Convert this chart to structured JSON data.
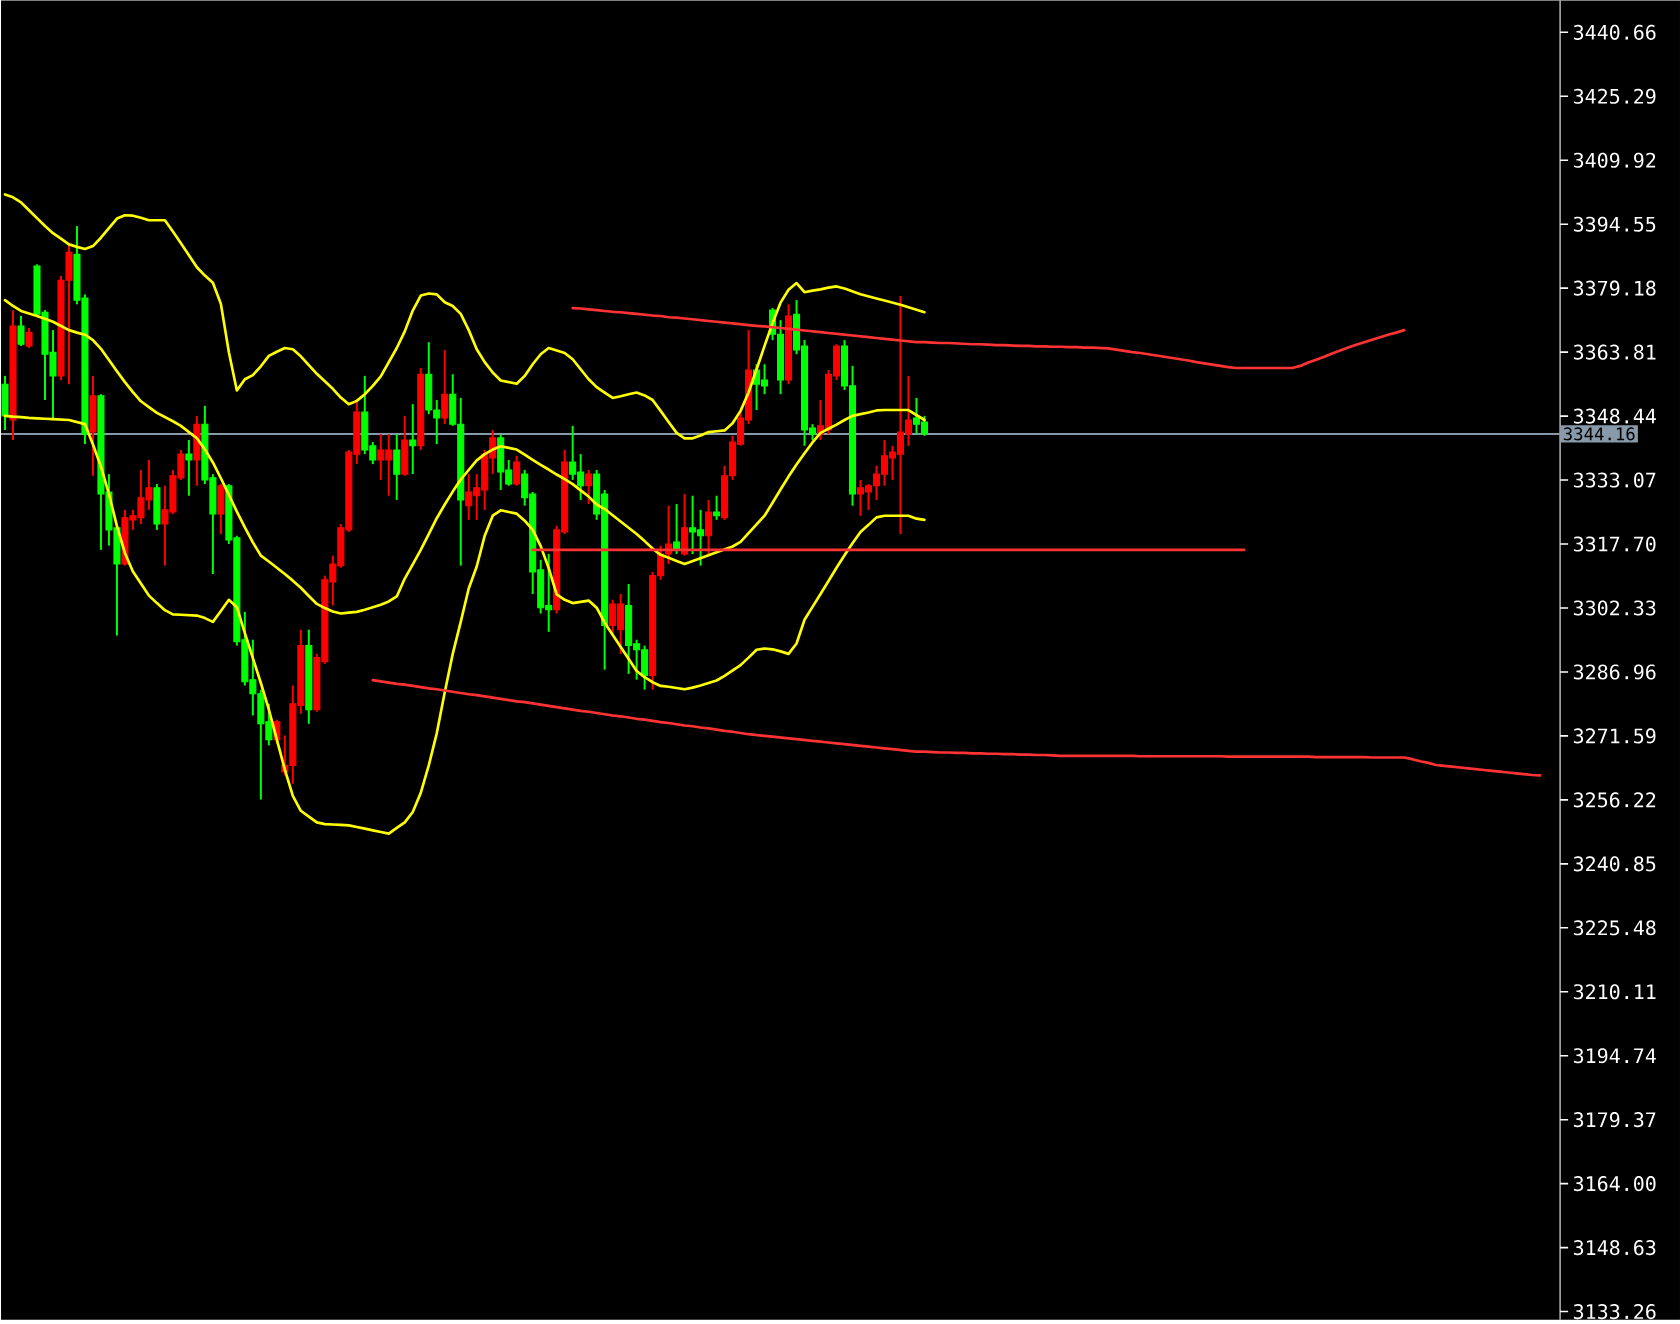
{
  "chart_data": {
    "type": "candlestick",
    "categories": [
      null,
      null,
      null,
      null,
      null,
      null,
      null,
      null,
      null,
      null,
      null,
      null,
      null,
      null,
      null,
      null,
      null,
      null,
      null,
      null,
      null,
      null,
      null,
      null,
      null,
      null,
      null,
      null,
      null,
      null,
      null,
      null,
      null,
      null,
      null,
      null,
      null,
      null,
      null,
      null,
      null,
      null,
      null,
      null,
      null,
      null,
      null,
      null,
      null,
      null,
      null,
      null,
      null,
      null,
      null,
      null,
      null,
      null,
      null,
      null,
      null,
      null,
      null,
      null,
      null,
      null,
      null,
      null,
      null,
      null,
      null,
      null,
      null,
      null,
      null,
      null,
      null,
      null,
      null,
      null,
      null,
      null,
      null,
      null,
      null,
      null,
      null,
      null,
      null,
      null,
      null,
      null,
      null,
      null,
      null,
      null,
      null,
      null,
      null,
      null,
      null,
      null,
      null,
      null,
      null,
      null,
      null,
      null,
      null,
      null,
      null,
      null,
      null,
      null,
      null,
      null,
      null,
      null,
      null,
      null,
      null,
      null,
      null,
      null,
      null,
      null,
      null,
      null,
      null,
      null,
      null,
      null,
      null,
      null,
      null,
      null,
      null,
      null,
      null,
      null,
      null,
      null,
      null,
      null,
      null,
      null,
      null,
      null,
      null,
      null,
      null,
      null,
      null,
      null,
      null,
      null,
      null,
      null,
      null,
      null,
      null,
      null,
      null,
      null,
      null,
      null,
      null,
      null,
      null,
      null,
      null,
      null,
      null,
      null,
      null,
      null,
      null,
      null,
      null,
      null,
      null,
      null,
      null,
      null,
      null,
      null,
      null,
      null,
      null,
      null,
      null,
      null,
      null,
      null,
      null
    ],
    "ohlc": [
      [
        3356.1,
        3358.1,
        3345.1,
        3348.5
      ],
      [
        3347.5,
        3373.9,
        3342.7,
        3370.1
      ],
      [
        3370.1,
        3372.5,
        3365.3,
        3365.7
      ],
      [
        3365.3,
        3369.6,
        3364.8,
        3368.6
      ],
      [
        3384.5,
        3384.9,
        3372.5,
        3372.9
      ],
      [
        3373.4,
        3373.9,
        3352.3,
        3363.3
      ],
      [
        3363.8,
        3369.1,
        3347.5,
        3358.1
      ],
      [
        3358.1,
        3382.1,
        3357.1,
        3381.1
      ],
      [
        3381.1,
        3389.7,
        3356.1,
        3387.8
      ],
      [
        3387.3,
        3394.1,
        3375.3,
        3376.3
      ],
      [
        3376.8,
        3377.7,
        3341.7,
        3344.1
      ],
      [
        3344.6,
        3358.1,
        3334.1,
        3353.3
      ],
      [
        3353.3,
        3353.7,
        3316.3,
        3329.7
      ],
      [
        3330.2,
        3334.5,
        3317.3,
        3321.1
      ],
      [
        3321.6,
        3322.1,
        3295.7,
        3312.9
      ],
      [
        3312.9,
        3325.9,
        3312.5,
        3324.0
      ],
      [
        3323.5,
        3325.9,
        3321.1,
        3324.5
      ],
      [
        3324.0,
        3335.5,
        3322.5,
        3328.8
      ],
      [
        3328.3,
        3337.9,
        3325.9,
        3331.2
      ],
      [
        3331.2,
        3332.1,
        3321.1,
        3322.5
      ],
      [
        3322.5,
        3331.7,
        3312.5,
        3325.9
      ],
      [
        3325.4,
        3335.5,
        3324.9,
        3334.1
      ],
      [
        3333.6,
        3340.3,
        3333.1,
        3339.3
      ],
      [
        3339.3,
        3342.7,
        3329.3,
        3337.9
      ],
      [
        3337.9,
        3348.5,
        3331.7,
        3346.5
      ],
      [
        3346.5,
        3350.9,
        3332.1,
        3333.1
      ],
      [
        3333.6,
        3334.5,
        3310.5,
        3324.9
      ],
      [
        3324.9,
        3332.1,
        3320.1,
        3331.7
      ],
      [
        3331.7,
        3332.1,
        3317.7,
        3318.7
      ],
      [
        3319.2,
        3319.7,
        3293.3,
        3294.2
      ],
      [
        3294.7,
        3301.4,
        3283.7,
        3284.6
      ],
      [
        3285.1,
        3294.7,
        3276.5,
        3281.7
      ],
      [
        3281.7,
        3282.7,
        3256.3,
        3274.5
      ],
      [
        3275.0,
        3279.3,
        3269.3,
        3270.7
      ],
      [
        3270.7,
        3275.5,
        3269.7,
        3275.0
      ],
      [
        3263.0,
        3271.7,
        3262.1,
        3264.5
      ],
      [
        3264.5,
        3283.7,
        3260.1,
        3279.3
      ],
      [
        3278.9,
        3297.1,
        3276.9,
        3293.3
      ],
      [
        3293.3,
        3297.1,
        3274.5,
        3277.9
      ],
      [
        3277.9,
        3291.3,
        3277.4,
        3290.4
      ],
      [
        3289.4,
        3310.1,
        3288.9,
        3309.1
      ],
      [
        3308.6,
        3314.9,
        3302.9,
        3312.9
      ],
      [
        3312.5,
        3322.5,
        3312.0,
        3321.6
      ],
      [
        3321.1,
        3340.3,
        3320.6,
        3339.8
      ],
      [
        3339.3,
        3352.3,
        3336.9,
        3349.4
      ],
      [
        3349.4,
        3358.1,
        3339.3,
        3340.3
      ],
      [
        3341.3,
        3342.2,
        3336.9,
        3337.9
      ],
      [
        3337.9,
        3344.1,
        3333.1,
        3340.3
      ],
      [
        3337.9,
        3344.1,
        3329.3,
        3340.3
      ],
      [
        3340.3,
        3344.1,
        3328.3,
        3334.5
      ],
      [
        3334.5,
        3348.5,
        3334.1,
        3342.7
      ],
      [
        3342.7,
        3351.3,
        3334.5,
        3341.3
      ],
      [
        3341.3,
        3360.0,
        3340.3,
        3358.5
      ],
      [
        3358.5,
        3366.2,
        3348.9,
        3349.9
      ],
      [
        3349.9,
        3352.3,
        3341.7,
        3348.0
      ],
      [
        3348.0,
        3364.3,
        3346.5,
        3353.7
      ],
      [
        3353.7,
        3358.5,
        3346.1,
        3346.5
      ],
      [
        3346.5,
        3352.8,
        3312.5,
        3328.3
      ],
      [
        3326.9,
        3334.5,
        3323.5,
        3330.2
      ],
      [
        3329.3,
        3334.5,
        3323.5,
        3331.2
      ],
      [
        3330.7,
        3340.3,
        3325.9,
        3339.3
      ],
      [
        3338.4,
        3345.1,
        3334.5,
        3343.2
      ],
      [
        3343.2,
        3344.1,
        3330.7,
        3335.0
      ],
      [
        3335.5,
        3337.9,
        3331.7,
        3332.1
      ],
      [
        3332.1,
        3338.9,
        3331.7,
        3337.4
      ],
      [
        3334.5,
        3335.5,
        3326.9,
        3328.8
      ],
      [
        3329.7,
        3330.2,
        3305.7,
        3311.0
      ],
      [
        3311.5,
        3313.9,
        3301.0,
        3302.4
      ],
      [
        3302.9,
        3315.3,
        3296.6,
        3301.9
      ],
      [
        3301.9,
        3322.1,
        3301.0,
        3321.1
      ],
      [
        3320.6,
        3340.3,
        3320.1,
        3337.4
      ],
      [
        3337.4,
        3346.1,
        3333.1,
        3334.5
      ],
      [
        3335.0,
        3339.3,
        3328.3,
        3331.7
      ],
      [
        3331.7,
        3335.5,
        3327.3,
        3334.5
      ],
      [
        3334.5,
        3335.5,
        3323.5,
        3324.9
      ],
      [
        3329.7,
        3330.7,
        3287.5,
        3298.1
      ],
      [
        3298.1,
        3304.3,
        3296.1,
        3303.3
      ],
      [
        3297.1,
        3305.7,
        3291.3,
        3303.3
      ],
      [
        3302.9,
        3308.1,
        3286.5,
        3293.3
      ],
      [
        3293.7,
        3294.7,
        3285.1,
        3292.3
      ],
      [
        3292.3,
        3293.3,
        3282.7,
        3286.1
      ],
      [
        3286.1,
        3311.0,
        3282.7,
        3310.1
      ],
      [
        3310.1,
        3317.3,
        3309.1,
        3315.3
      ],
      [
        3315.3,
        3326.9,
        3312.9,
        3317.7
      ],
      [
        3318.2,
        3327.3,
        3315.3,
        3316.3
      ],
      [
        3315.3,
        3329.7,
        3314.9,
        3321.6
      ],
      [
        3321.6,
        3329.3,
        3315.3,
        3320.6
      ],
      [
        3321.1,
        3325.9,
        3312.5,
        3319.7
      ],
      [
        3319.7,
        3328.3,
        3314.9,
        3325.4
      ],
      [
        3325.4,
        3329.3,
        3323.5,
        3324.5
      ],
      [
        3324.0,
        3336.5,
        3323.5,
        3334.1
      ],
      [
        3334.1,
        3343.7,
        3333.1,
        3342.2
      ],
      [
        3341.7,
        3349.9,
        3341.3,
        3348.0
      ],
      [
        3347.5,
        3369.1,
        3346.5,
        3359.5
      ],
      [
        3359.5,
        3360.9,
        3349.9,
        3356.1
      ],
      [
        3357.1,
        3360.9,
        3353.7,
        3355.7
      ],
      [
        3373.9,
        3374.4,
        3366.7,
        3368.1
      ],
      [
        3368.1,
        3371.5,
        3353.7,
        3357.1
      ],
      [
        3357.1,
        3375.3,
        3356.1,
        3372.5
      ],
      [
        3372.9,
        3376.3,
        3363.3,
        3364.3
      ],
      [
        3365.3,
        3366.7,
        3341.3,
        3345.1
      ],
      [
        3345.6,
        3346.5,
        3342.7,
        3344.1
      ],
      [
        3344.1,
        3352.3,
        3342.7,
        3346.1
      ],
      [
        3345.1,
        3359.5,
        3344.1,
        3358.5
      ],
      [
        3358.1,
        3365.7,
        3357.1,
        3365.3
      ],
      [
        3365.3,
        3366.7,
        3354.7,
        3355.7
      ],
      [
        3355.7,
        3360.5,
        3326.9,
        3329.7
      ],
      [
        3329.7,
        3333.1,
        3324.5,
        3331.2
      ],
      [
        3330.2,
        3332.1,
        3325.9,
        3331.7
      ],
      [
        3331.7,
        3336.5,
        3328.3,
        3334.5
      ],
      [
        3334.5,
        3342.7,
        3331.7,
        3338.9
      ],
      [
        3338.4,
        3341.3,
        3333.1,
        3339.8
      ],
      [
        3339.3,
        3377.3,
        3320.1,
        3344.6
      ],
      [
        3344.1,
        3358.1,
        3341.3,
        3347.5
      ],
      [
        3348.0,
        3352.8,
        3344.1,
        3346.5
      ],
      [
        3347.0,
        3348.5,
        3343.7,
        3344.16
      ],
      null,
      null,
      null,
      null,
      null,
      null,
      null,
      null,
      null,
      null,
      null,
      null,
      null,
      null,
      null,
      null,
      null,
      null,
      null,
      null,
      null,
      null,
      null,
      null,
      null,
      null,
      null,
      null,
      null,
      null,
      null,
      null,
      null,
      null,
      null,
      null,
      null,
      null,
      null,
      null,
      null,
      null,
      null,
      null,
      null,
      null,
      null,
      null,
      null,
      null,
      null,
      null,
      null,
      null,
      null,
      null,
      null,
      null,
      null,
      null,
      null,
      null,
      null,
      null,
      null,
      null,
      null,
      null,
      null,
      null,
      null,
      null,
      null,
      null,
      null,
      null,
      null,
      null,
      null
    ],
    "colors": [
      "#00ff00",
      "#ff0000",
      "#00ff00",
      "#ff0000",
      "#00ff00",
      "#00ff00",
      "#00ff00",
      "#ff0000",
      "#ff0000",
      "#00ff00",
      "#00ff00",
      "#ff0000",
      "#00ff00",
      "#00ff00",
      "#00ff00",
      "#ff0000",
      "#ff0000",
      "#ff0000",
      "#ff0000",
      "#00ff00",
      "#ff0000",
      "#ff0000",
      "#ff0000",
      "#00ff00",
      "#ff0000",
      "#00ff00",
      "#00ff00",
      "#ff0000",
      "#00ff00",
      "#00ff00",
      "#00ff00",
      "#00ff00",
      "#00ff00",
      "#00ff00",
      "#ff0000",
      "#ff0000",
      "#ff0000",
      "#ff0000",
      "#00ff00",
      "#ff0000",
      "#ff0000",
      "#ff0000",
      "#ff0000",
      "#ff0000",
      "#ff0000",
      "#00ff00",
      "#00ff00",
      "#ff0000",
      "#ff0000",
      "#00ff00",
      "#ff0000",
      "#00ff00",
      "#ff0000",
      "#00ff00",
      "#00ff00",
      "#ff0000",
      "#00ff00",
      "#00ff00",
      "#ff0000",
      "#ff0000",
      "#ff0000",
      "#ff0000",
      "#00ff00",
      "#00ff00",
      "#ff0000",
      "#00ff00",
      "#00ff00",
      "#00ff00",
      "#00ff00",
      "#ff0000",
      "#ff0000",
      "#00ff00",
      "#00ff00",
      "#ff0000",
      "#00ff00",
      "#00ff00",
      "#ff0000",
      "#ff0000",
      "#00ff00",
      "#00ff00",
      "#00ff00",
      "#ff0000",
      "#ff0000",
      "#ff0000",
      "#00ff00",
      "#ff0000",
      "#00ff00",
      "#00ff00",
      "#ff0000",
      "#00ff00",
      "#ff0000",
      "#ff0000",
      "#ff0000",
      "#ff0000",
      "#00ff00",
      "#00ff00",
      "#00ff00",
      "#00ff00",
      "#ff0000",
      "#00ff00",
      "#00ff00",
      "#00ff00",
      "#ff0000",
      "#ff0000",
      "#ff0000",
      "#00ff00",
      "#00ff00",
      "#ff0000",
      "#ff0000",
      "#ff0000",
      "#ff0000",
      "#ff0000",
      "#ff0000",
      "#ff0000",
      "#00ff00",
      "#00ff00",
      null,
      null,
      null,
      null,
      null,
      null,
      null,
      null,
      null,
      null,
      null,
      null,
      null,
      null,
      null,
      null,
      null,
      null,
      null,
      null,
      null,
      null,
      null,
      null,
      null,
      null,
      null,
      null,
      null,
      null,
      null,
      null,
      null,
      null,
      null,
      null,
      null,
      null,
      null,
      null,
      null,
      null,
      null,
      null,
      null,
      null,
      null,
      null,
      null,
      null,
      null,
      null,
      null,
      null,
      null,
      null,
      null,
      null,
      null,
      null,
      null,
      null,
      null,
      null,
      null,
      null,
      null,
      null,
      null,
      null,
      null,
      null,
      null,
      null,
      null,
      null,
      null,
      null,
      null
    ],
    "series": [
      {
        "type": "line",
        "color": "#ffff00",
        "values": [
          3401.7,
          3401.0,
          3399.8,
          3397.9,
          3396.0,
          3394.1,
          3392.4,
          3391.1,
          3389.7,
          3389.1,
          3388.6,
          3389.3,
          3391.3,
          3393.6,
          3395.9,
          3396.7,
          3396.6,
          3396.1,
          3395.5,
          3395.5,
          3395.5,
          3392.8,
          3390.0,
          3387.1,
          3384.2,
          3382.2,
          3380.5,
          3375.4,
          3363.8,
          3354.6,
          3357.3,
          3358.3,
          3360.4,
          3362.9,
          3363.9,
          3364.8,
          3364.5,
          3362.8,
          3360.7,
          3358.6,
          3356.8,
          3355.0,
          3352.9,
          3351.3,
          3352.1,
          3353.7,
          3355.7,
          3358.0,
          3361.4,
          3364.8,
          3368.8,
          3373.8,
          3377.4,
          3377.9,
          3377.7,
          3375.8,
          3374.9,
          3373.0,
          3369.1,
          3364.5,
          3361.4,
          3358.9,
          3357.0,
          3356.6,
          3356.2,
          3358.1,
          3360.9,
          3363.3,
          3364.8,
          3364.2,
          3363.6,
          3362.1,
          3359.7,
          3357.3,
          3355.4,
          3354.1,
          3352.8,
          3353.2,
          3353.7,
          3354.1,
          3353.4,
          3352.3,
          3349.7,
          3347.0,
          3344.4,
          3343.1,
          3343.1,
          3343.8,
          3344.6,
          3344.8,
          3345.0,
          3346.7,
          3349.7,
          3354.1,
          3359.7,
          3365.3,
          3370.8,
          3375.7,
          3378.8,
          3380.4,
          3378.2,
          3378.6,
          3378.9,
          3379.3,
          3379.6,
          3379.1,
          3378.4,
          3377.7,
          3377.2,
          3376.7,
          3376.2,
          3375.7,
          3375.2,
          3374.6,
          3374.0,
          3373.4,
          null,
          null,
          null,
          null,
          null,
          null,
          null,
          null,
          null,
          null,
          null,
          null,
          null,
          null,
          null,
          null,
          null,
          null,
          null,
          null,
          null,
          null,
          null,
          null,
          null,
          null,
          null,
          null,
          null,
          null,
          null,
          null,
          null,
          null,
          null,
          null,
          null,
          null,
          null,
          null,
          null,
          null,
          null,
          null,
          null,
          null,
          null,
          null,
          null,
          null,
          null,
          null,
          null,
          null,
          null,
          null,
          null,
          null,
          null,
          null,
          null,
          null,
          null,
          null,
          null,
          null,
          null,
          null,
          null,
          null,
          null,
          null,
          null,
          null,
          null,
          null,
          null,
          null,
          null
        ]
      },
      {
        "type": "line",
        "color": "#ffff00",
        "values": [
          3376.3,
          3374.9,
          3373.7,
          3373.1,
          3372.5,
          3371.8,
          3371.1,
          3370.1,
          3369.1,
          3368.5,
          3368.0,
          3366.7,
          3364.6,
          3361.9,
          3359.2,
          3356.6,
          3354.2,
          3352.0,
          3350.6,
          3349.2,
          3348.2,
          3347.2,
          3346.1,
          3344.6,
          3343.1,
          3340.4,
          3337.3,
          3333.5,
          3329.5,
          3325.5,
          3321.7,
          3318.1,
          3314.9,
          3313.5,
          3312.0,
          3310.5,
          3308.9,
          3307.2,
          3305.2,
          3303.3,
          3302.3,
          3301.5,
          3301.0,
          3301.2,
          3301.4,
          3301.9,
          3302.5,
          3303.1,
          3303.9,
          3305.1,
          3309.4,
          3312.8,
          3316.3,
          3320.1,
          3323.9,
          3327.2,
          3330.3,
          3333.2,
          3335.5,
          3337.8,
          3339.3,
          3340.4,
          3341.2,
          3340.8,
          3340.4,
          3339.2,
          3337.9,
          3336.7,
          3335.6,
          3334.4,
          3333.3,
          3332.1,
          3330.6,
          3329.1,
          3327.2,
          3326.1,
          3324.6,
          3323.1,
          3321.6,
          3320.1,
          3318.4,
          3316.6,
          3315.1,
          3314.4,
          3313.6,
          3312.9,
          3313.6,
          3314.3,
          3315.0,
          3315.7,
          3316.4,
          3317.1,
          3318.2,
          3320.3,
          3322.4,
          3324.5,
          3327.6,
          3330.8,
          3333.9,
          3336.8,
          3339.5,
          3342.1,
          3344.4,
          3345.4,
          3346.4,
          3347.5,
          3348.5,
          3348.9,
          3349.3,
          3349.8,
          3349.9,
          3349.9,
          3349.9,
          3349.9,
          3348.7,
          3347.5,
          null,
          null,
          null,
          null,
          null,
          null,
          null,
          null,
          null,
          null,
          null,
          null,
          null,
          null,
          null,
          null,
          null,
          null,
          null,
          null,
          null,
          null,
          null,
          null,
          null,
          null,
          null,
          null,
          null,
          null,
          null,
          null,
          null,
          null,
          null,
          null,
          null,
          null,
          null,
          null,
          null,
          null,
          null,
          null,
          null,
          null,
          null,
          null,
          null,
          null,
          null,
          null,
          null,
          null,
          null,
          null,
          null,
          null,
          null,
          null,
          null,
          null,
          null,
          null,
          null,
          null,
          null,
          null,
          null,
          null,
          null,
          null,
          null,
          null,
          null,
          null,
          null,
          null,
          null
        ]
      },
      {
        "type": "line",
        "color": "#ffff00",
        "values": [
          3348.5,
          3348.3,
          3348.2,
          3348.0,
          3347.9,
          3347.8,
          3347.7,
          3347.6,
          3347.5,
          3347.0,
          3346.5,
          3341.6,
          3336.3,
          3329.7,
          3322.0,
          3315.5,
          3311.1,
          3308.2,
          3305.3,
          3303.5,
          3301.8,
          3300.8,
          3300.7,
          3300.6,
          3300.5,
          3299.9,
          3299.0,
          3301.6,
          3304.3,
          3302.5,
          3296.3,
          3290.3,
          3284.3,
          3277.9,
          3270.7,
          3263.5,
          3257.2,
          3253.6,
          3252.2,
          3250.8,
          3250.4,
          3250.3,
          3250.2,
          3250.1,
          3249.7,
          3249.3,
          3248.9,
          3248.5,
          3248.1,
          3249.5,
          3250.8,
          3253.3,
          3257.9,
          3264.5,
          3272.2,
          3282.1,
          3291.3,
          3299.0,
          3307.0,
          3312.3,
          3319.7,
          3324.5,
          3325.8,
          3325.4,
          3325.0,
          3323.3,
          3321.1,
          3317.2,
          3311.9,
          3305.6,
          3304.3,
          3303.5,
          3303.8,
          3304.1,
          3302.4,
          3298.8,
          3295.9,
          3293.0,
          3290.1,
          3287.2,
          3285.7,
          3284.5,
          3283.6,
          3283.4,
          3283.1,
          3282.8,
          3283.2,
          3283.7,
          3284.3,
          3284.9,
          3286.0,
          3287.3,
          3288.6,
          3290.4,
          3292.3,
          3292.6,
          3292.4,
          3291.9,
          3291.3,
          3293.8,
          3299.5,
          3302.6,
          3305.7,
          3308.8,
          3312.0,
          3315.0,
          3317.9,
          3320.6,
          3322.3,
          3324.1,
          3324.5,
          3324.5,
          3324.5,
          3324.5,
          3323.8,
          3323.5,
          null,
          null,
          null,
          null,
          null,
          null,
          null,
          null,
          null,
          null,
          null,
          null,
          null,
          null,
          null,
          null,
          null,
          null,
          null,
          null,
          null,
          null,
          null,
          null,
          null,
          null,
          null,
          null,
          null,
          null,
          null,
          null,
          null,
          null,
          null,
          null,
          null,
          null,
          null,
          null,
          null,
          null,
          null,
          null,
          null,
          null,
          null,
          null,
          null,
          null,
          null,
          null,
          null,
          null,
          null,
          null,
          null,
          null,
          null,
          null,
          null,
          null,
          null,
          null,
          null,
          null,
          null,
          null,
          null,
          null,
          null,
          null,
          null,
          null,
          null,
          null,
          null,
          null,
          null
        ]
      },
      {
        "type": "line",
        "color": "#ff3333",
        "values": [
          null,
          null,
          null,
          null,
          null,
          null,
          null,
          null,
          null,
          null,
          null,
          null,
          null,
          null,
          null,
          null,
          null,
          null,
          null,
          null,
          null,
          null,
          null,
          null,
          null,
          null,
          null,
          null,
          null,
          null,
          null,
          null,
          null,
          null,
          null,
          null,
          null,
          null,
          null,
          null,
          null,
          null,
          null,
          null,
          null,
          null,
          null,
          null,
          null,
          null,
          null,
          null,
          null,
          null,
          null,
          null,
          null,
          null,
          null,
          null,
          null,
          null,
          null,
          null,
          null,
          null,
          null,
          null,
          null,
          null,
          null,
          3374.4,
          3374.3,
          3374.1,
          3373.9,
          3373.7,
          3373.5,
          3373.4,
          3373.2,
          3373.0,
          3372.8,
          3372.6,
          3372.5,
          3372.2,
          3372.1,
          3371.9,
          3371.7,
          3371.5,
          3371.3,
          3371.1,
          3370.9,
          3370.7,
          3370.5,
          3370.3,
          3370.1,
          3370.0,
          3369.8,
          3369.6,
          3369.4,
          3369.2,
          3369.0,
          3368.8,
          3368.6,
          3368.4,
          3368.2,
          3368.0,
          3367.8,
          3367.6,
          3367.4,
          3367.2,
          3367.0,
          3366.8,
          3366.6,
          3366.4,
          3366.2,
          3366.2,
          3366.1,
          3366.0,
          3366.0,
          3365.9,
          3365.8,
          3365.7,
          3365.7,
          3365.6,
          3365.5,
          3365.5,
          3365.4,
          3365.3,
          3365.3,
          3365.2,
          3365.2,
          3365.1,
          3365.1,
          3365.0,
          3365.0,
          3364.9,
          3364.9,
          3364.8,
          3364.7,
          3364.4,
          3364.1,
          3363.8,
          3363.6,
          3363.3,
          3363.0,
          3362.7,
          3362.4,
          3362.1,
          3361.8,
          3361.4,
          3361.1,
          3360.8,
          3360.5,
          3360.2,
          3360.0,
          3360.0,
          3360.0,
          3360.0,
          3360.0,
          3360.0,
          3360.0,
          3360.0,
          3360.5,
          3361.3,
          3362.0,
          3362.7,
          3363.5,
          3364.2,
          3364.9,
          3365.6,
          3366.2,
          3366.8,
          3367.4,
          3368.0,
          3368.5,
          3369.1,
          null,
          null,
          null,
          null,
          null,
          null,
          null,
          null,
          null,
          null,
          null,
          null,
          null,
          null,
          null,
          null,
          null,
          null,
          null
        ]
      },
      {
        "type": "line",
        "color": "#ff3333",
        "values": [
          null,
          null,
          null,
          null,
          null,
          null,
          null,
          null,
          null,
          null,
          null,
          null,
          null,
          null,
          null,
          null,
          null,
          null,
          null,
          null,
          null,
          null,
          null,
          null,
          null,
          null,
          null,
          null,
          null,
          null,
          null,
          null,
          null,
          null,
          null,
          null,
          null,
          null,
          null,
          null,
          null,
          null,
          null,
          null,
          null,
          null,
          null,
          null,
          null,
          null,
          null,
          null,
          null,
          null,
          null,
          null,
          null,
          null,
          null,
          null,
          null,
          null,
          null,
          null,
          null,
          null,
          3316.3,
          3316.3,
          3316.3,
          3316.3,
          3316.3,
          3316.3,
          3316.3,
          3316.3,
          3316.3,
          3316.3,
          3316.3,
          3316.3,
          3316.3,
          3316.3,
          3316.3,
          3316.3,
          3316.3,
          3316.3,
          3316.3,
          3316.3,
          3316.3,
          3316.3,
          3316.3,
          3316.3,
          3316.3,
          3316.3,
          3316.3,
          3316.3,
          3316.3,
          3316.3,
          3316.3,
          3316.3,
          3316.3,
          3316.3,
          3316.3,
          3316.3,
          3316.3,
          3316.3,
          3316.3,
          3316.3,
          3316.3,
          3316.3,
          3316.3,
          3316.3,
          3316.3,
          3316.3,
          3316.3,
          3316.3,
          3316.3,
          3316.3,
          3316.3,
          3316.3,
          3316.3,
          3316.3,
          3316.3,
          3316.3,
          3316.3,
          3316.3,
          3316.3,
          3316.3,
          3316.3,
          3316.3,
          3316.3,
          3316.3,
          3316.3,
          3316.3,
          3316.3,
          3316.3,
          3316.3,
          3316.3,
          3316.3,
          3316.3,
          3316.3,
          3316.3,
          3316.3,
          3316.3,
          3316.3,
          3316.3,
          3316.3,
          3316.3,
          3316.3,
          3316.3,
          3316.3,
          3316.3,
          3316.3,
          3316.3,
          3316.3,
          3316.3,
          3316.3,
          3316.3,
          null,
          null,
          null,
          null,
          null,
          null,
          null,
          null,
          null,
          null,
          null,
          null,
          null,
          null,
          null,
          null,
          null,
          null,
          null,
          null,
          null,
          null,
          null,
          null,
          null,
          null,
          null,
          null,
          null,
          null,
          null,
          null,
          null,
          null,
          null,
          null,
          null,
          null,
          null
        ]
      },
      {
        "type": "line",
        "color": "#ff3333",
        "values": [
          null,
          null,
          null,
          null,
          null,
          null,
          null,
          null,
          null,
          null,
          null,
          null,
          null,
          null,
          null,
          null,
          null,
          null,
          null,
          null,
          null,
          null,
          null,
          null,
          null,
          null,
          null,
          null,
          null,
          null,
          null,
          null,
          null,
          null,
          null,
          null,
          null,
          null,
          null,
          null,
          null,
          null,
          null,
          null,
          null,
          null,
          3285.0,
          3284.7,
          3284.4,
          3284.1,
          3283.9,
          3283.6,
          3283.3,
          3283.0,
          3282.8,
          3282.5,
          3282.2,
          3281.9,
          3281.6,
          3281.4,
          3281.1,
          3280.8,
          3280.5,
          3280.2,
          3279.9,
          3279.7,
          3279.4,
          3279.1,
          3278.8,
          3278.5,
          3278.2,
          3277.9,
          3277.6,
          3277.4,
          3277.1,
          3276.8,
          3276.5,
          3276.3,
          3276.0,
          3275.7,
          3275.5,
          3275.2,
          3274.9,
          3274.7,
          3274.4,
          3274.1,
          3273.9,
          3273.6,
          3273.4,
          3273.1,
          3272.8,
          3272.6,
          3272.3,
          3272.0,
          3271.8,
          3271.6,
          3271.4,
          3271.2,
          3271.0,
          3270.8,
          3270.6,
          3270.4,
          3270.2,
          3270.0,
          3269.8,
          3269.6,
          3269.4,
          3269.2,
          3269.0,
          3268.8,
          3268.6,
          3268.4,
          3268.2,
          3268.0,
          3267.8,
          3267.8,
          3267.7,
          3267.6,
          3267.6,
          3267.5,
          3267.5,
          3267.4,
          3267.4,
          3267.3,
          3267.3,
          3267.2,
          3267.2,
          3267.1,
          3267.1,
          3267.0,
          3267.0,
          3266.9,
          3266.8,
          3266.8,
          3266.8,
          3266.8,
          3266.8,
          3266.8,
          3266.8,
          3266.8,
          3266.8,
          3266.8,
          3266.7,
          3266.7,
          3266.7,
          3266.7,
          3266.7,
          3266.7,
          3266.7,
          3266.7,
          3266.7,
          3266.7,
          3266.7,
          3266.6,
          3266.6,
          3266.6,
          3266.6,
          3266.6,
          3266.6,
          3266.6,
          3266.6,
          3266.6,
          3266.6,
          3266.6,
          3266.5,
          3266.5,
          3266.5,
          3266.5,
          3266.5,
          3266.5,
          3266.5,
          3266.4,
          3266.4,
          3266.4,
          3266.4,
          3266.4,
          3266.0,
          3265.5,
          3265.1,
          3264.6,
          3264.4,
          3264.2,
          3264.0,
          3263.8,
          3263.6,
          3263.4,
          3263.2,
          3263.0,
          3262.8,
          3262.6,
          3262.4,
          3262.2,
          3262.1,
          null,
          null
        ]
      }
    ],
    "ref_lines": [
      {
        "axis": "y",
        "value": 3344.16,
        "label": "3344.16",
        "color": "#8899aa"
      }
    ],
    "ylim": [
      3131.3,
      3448.3
    ],
    "yticks": [
      3440.66,
      3425.29,
      3409.92,
      3394.55,
      3379.18,
      3363.81,
      3348.44,
      3333.07,
      {
        "value": 3317.7,
        "label": "3317.70"
      },
      3302.33,
      3286.96,
      3271.59,
      3256.22,
      3240.85,
      3225.48,
      3210.11,
      3194.74,
      3179.37,
      {
        "value": 3164.0,
        "label": "3164.00"
      },
      3148.63,
      3133.26
    ],
    "tick_labels": "y"
  }
}
